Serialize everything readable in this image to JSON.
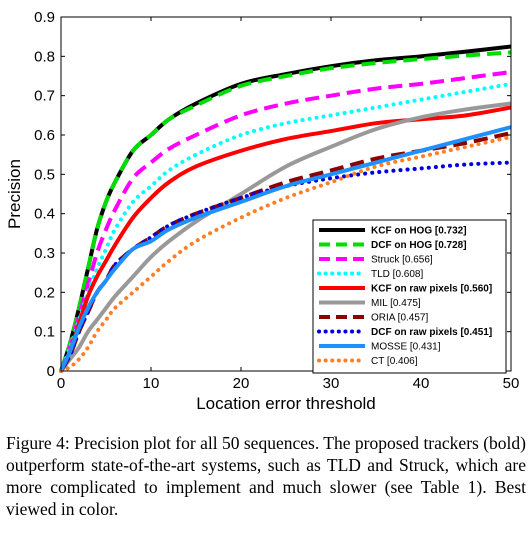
{
  "caption": "Figure 4: Precision plot for all 50 sequences. The proposed trackers (bold) outperform state-of-the-art systems, such as TLD and Struck, which are more complicated to implement and much slower (see Table 1). Best viewed in color.",
  "chart_data": {
    "type": "line",
    "xlabel": "Location error threshold",
    "ylabel": "Precision",
    "xlim": [
      0,
      50
    ],
    "ylim": [
      0,
      0.9
    ],
    "xticks": [
      0,
      10,
      20,
      30,
      40,
      50
    ],
    "yticks": [
      0,
      0.1,
      0.2,
      0.3,
      0.4,
      0.5,
      0.6,
      0.7,
      0.8,
      0.9
    ],
    "grid": false,
    "legend_position": "bottom-right",
    "x": [
      0,
      1,
      2,
      3,
      4,
      5,
      6,
      8,
      10,
      12,
      15,
      20,
      25,
      30,
      35,
      40,
      45,
      50
    ],
    "series": [
      {
        "name": "KCF on HOG [0.732]",
        "bold": true,
        "color": "#000000",
        "dash": "solid",
        "values": [
          0.0,
          0.07,
          0.16,
          0.26,
          0.36,
          0.43,
          0.48,
          0.56,
          0.6,
          0.64,
          0.68,
          0.73,
          0.755,
          0.775,
          0.79,
          0.8,
          0.812,
          0.825
        ]
      },
      {
        "name": "DCF on HOG [0.728]",
        "bold": true,
        "color": "#00dd00",
        "dash": "dash",
        "values": [
          0.0,
          0.07,
          0.16,
          0.26,
          0.36,
          0.43,
          0.48,
          0.56,
          0.6,
          0.64,
          0.675,
          0.725,
          0.75,
          0.77,
          0.783,
          0.793,
          0.802,
          0.81
        ]
      },
      {
        "name": "Struck [0.656]",
        "bold": false,
        "color": "#ff00ff",
        "dash": "dash",
        "values": [
          0.0,
          0.06,
          0.14,
          0.22,
          0.3,
          0.36,
          0.41,
          0.49,
          0.53,
          0.565,
          0.6,
          0.65,
          0.68,
          0.7,
          0.718,
          0.73,
          0.745,
          0.76
        ]
      },
      {
        "name": "TLD [0.608]",
        "bold": false,
        "color": "#00ffff",
        "dash": "dot",
        "values": [
          0.0,
          0.06,
          0.13,
          0.2,
          0.26,
          0.31,
          0.36,
          0.43,
          0.47,
          0.51,
          0.55,
          0.6,
          0.63,
          0.65,
          0.67,
          0.69,
          0.71,
          0.73
        ]
      },
      {
        "name": "KCF on raw pixels [0.560]",
        "bold": true,
        "color": "#ff0000",
        "dash": "solid",
        "values": [
          0.0,
          0.05,
          0.12,
          0.19,
          0.24,
          0.28,
          0.32,
          0.39,
          0.44,
          0.48,
          0.52,
          0.56,
          0.59,
          0.61,
          0.63,
          0.64,
          0.65,
          0.67
        ]
      },
      {
        "name": "MIL [0.475]",
        "bold": false,
        "color": "#999999",
        "dash": "solid",
        "values": [
          0.0,
          0.03,
          0.06,
          0.1,
          0.13,
          0.16,
          0.19,
          0.24,
          0.29,
          0.33,
          0.38,
          0.45,
          0.52,
          0.57,
          0.615,
          0.645,
          0.665,
          0.68
        ]
      },
      {
        "name": "ORIA [0.457]",
        "bold": false,
        "color": "#8b0000",
        "dash": "dash",
        "values": [
          0.0,
          0.04,
          0.1,
          0.15,
          0.2,
          0.23,
          0.27,
          0.31,
          0.34,
          0.37,
          0.4,
          0.44,
          0.48,
          0.51,
          0.54,
          0.56,
          0.58,
          0.605
        ]
      },
      {
        "name": "DCF on raw pixels [0.451]",
        "bold": true,
        "color": "#0000dd",
        "dash": "dot",
        "values": [
          0.0,
          0.04,
          0.1,
          0.15,
          0.2,
          0.23,
          0.27,
          0.31,
          0.34,
          0.37,
          0.4,
          0.44,
          0.47,
          0.49,
          0.505,
          0.515,
          0.525,
          0.53
        ]
      },
      {
        "name": "MOSSE [0.431]",
        "bold": false,
        "color": "#1e90ff",
        "dash": "solid",
        "values": [
          0.0,
          0.05,
          0.11,
          0.16,
          0.2,
          0.23,
          0.26,
          0.31,
          0.33,
          0.36,
          0.39,
          0.43,
          0.47,
          0.5,
          0.53,
          0.56,
          0.59,
          0.62
        ]
      },
      {
        "name": "CT [0.406]",
        "bold": false,
        "color": "#ff7f27",
        "dash": "dot",
        "values": [
          0.0,
          0.01,
          0.03,
          0.06,
          0.1,
          0.13,
          0.16,
          0.2,
          0.24,
          0.28,
          0.33,
          0.39,
          0.44,
          0.48,
          0.52,
          0.545,
          0.57,
          0.595
        ]
      }
    ]
  }
}
